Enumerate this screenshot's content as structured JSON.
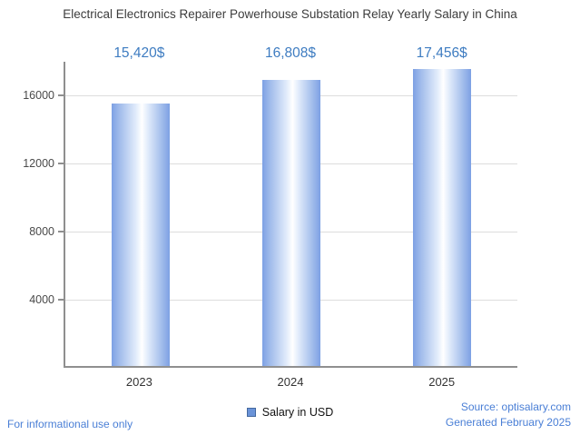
{
  "chart_data": {
    "type": "bar",
    "title": "Electrical Electronics Repairer Powerhouse Substation Relay Yearly Salary in China",
    "categories": [
      "2023",
      "2024",
      "2025"
    ],
    "values": [
      15420,
      16808,
      17456
    ],
    "value_labels": [
      "15,420$",
      "16,808$",
      "17,456$"
    ],
    "series_name": "Salary in USD",
    "xlabel": "",
    "ylabel": "",
    "yticks": [
      4000,
      8000,
      12000,
      16000
    ],
    "ylim": [
      0,
      18000
    ],
    "grid": true,
    "legend_position": "bottom-center"
  },
  "legend": {
    "label": "Salary in USD"
  },
  "footer": {
    "disclaimer": "For informational use only",
    "source": "Source: optisalary.com",
    "generated": "Generated February 2025"
  },
  "colors": {
    "accent": "#3e7cc1",
    "bar_edge": "#7da0e4",
    "bar_center": "#ffffff",
    "link": "#4a7fd6",
    "grid": "#dddddd",
    "axis": "#8f8f8f",
    "legend_swatch": "#6a93d8"
  }
}
